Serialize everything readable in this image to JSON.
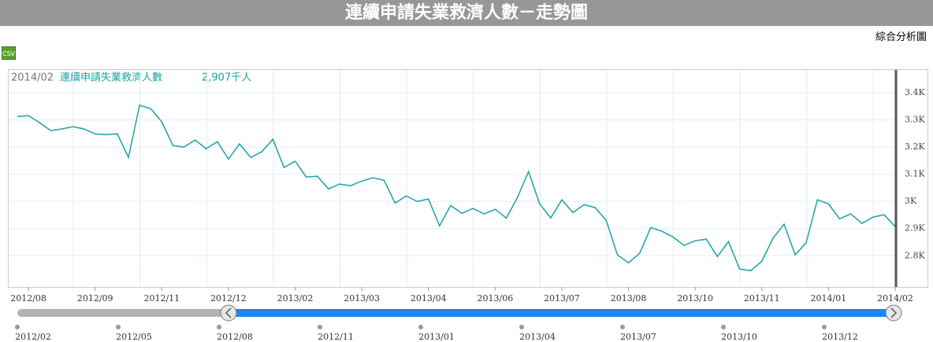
{
  "page_title": "連續申請失業救濟人數－走勢圖",
  "link_text": "綜合分析圖",
  "csv_label": "CSV",
  "chart_data": {
    "type": "line",
    "readout": {
      "date": "2014/02",
      "label": "2,907千人"
    },
    "categories": [
      null,
      "2012/08",
      null,
      null,
      null,
      null,
      null,
      "2012/09",
      null,
      null,
      null,
      null,
      null,
      "2012/11",
      null,
      null,
      null,
      null,
      null,
      "2012/12",
      null,
      null,
      null,
      null,
      null,
      "2013/02",
      null,
      null,
      null,
      null,
      null,
      "2013/03",
      null,
      null,
      null,
      null,
      null,
      "2013/04",
      null,
      null,
      null,
      null,
      null,
      "2013/06",
      null,
      null,
      null,
      null,
      null,
      "2013/07",
      null,
      null,
      null,
      null,
      null,
      "2013/08",
      null,
      null,
      null,
      null,
      null,
      "2013/10",
      null,
      null,
      null,
      null,
      null,
      "2013/11",
      null,
      null,
      null,
      null,
      null,
      "2014/01",
      null,
      null,
      null,
      null,
      null,
      "2014/02"
    ],
    "series": [
      {
        "name": "連續申請失業救濟人數",
        "color": "#1aa3a3",
        "values": [
          3313,
          3316,
          3290,
          3261,
          3267,
          3275,
          3267,
          3249,
          3246,
          3249,
          3162,
          3354,
          3342,
          3293,
          3206,
          3200,
          3226,
          3194,
          3220,
          3156,
          3212,
          3162,
          3183,
          3229,
          3125,
          3148,
          3090,
          3093,
          3046,
          3064,
          3058,
          3075,
          3087,
          3078,
          2994,
          3020,
          3000,
          3009,
          2910,
          2985,
          2956,
          2974,
          2954,
          2971,
          2939,
          3014,
          3110,
          2991,
          2939,
          3006,
          2959,
          2988,
          2977,
          2930,
          2803,
          2774,
          2809,
          2904,
          2890,
          2869,
          2838,
          2855,
          2861,
          2797,
          2852,
          2751,
          2745,
          2780,
          2864,
          2916,
          2803,
          2849,
          3006,
          2991,
          2936,
          2954,
          2919,
          2942,
          2951,
          2907
        ]
      }
    ],
    "ylim": [
      2685,
      3487
    ],
    "yticks": [
      {
        "value": 2800,
        "label": "2.8K"
      },
      {
        "value": 2900,
        "label": "2.9K"
      },
      {
        "value": 3000,
        "label": "3K"
      },
      {
        "value": 3100,
        "label": "3.1K"
      },
      {
        "value": 3200,
        "label": "3.2K"
      },
      {
        "value": 3300,
        "label": "3.3K"
      },
      {
        "value": 3400,
        "label": "3.4K"
      }
    ],
    "grid": true,
    "navigator": {
      "labels": [
        "2012/02",
        "2012/05",
        "2012/08",
        "2012/11",
        "2013/01",
        "2013/04",
        "2013/07",
        "2013/10",
        "2013/12"
      ]
    }
  }
}
